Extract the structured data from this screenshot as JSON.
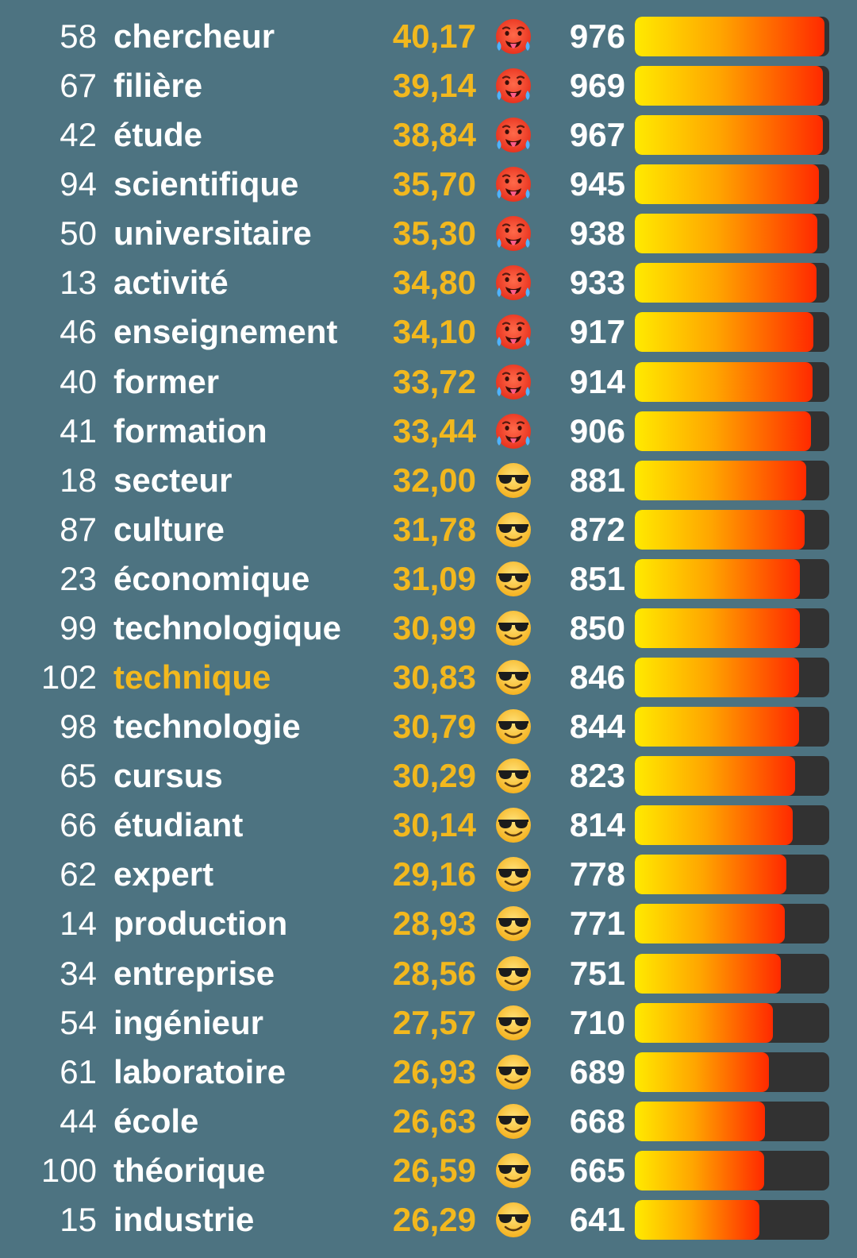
{
  "colors": {
    "background": "#4d7381",
    "highlight": "#f2b81e",
    "bar_track": "#323232",
    "bar_gradient": [
      "#ffea00",
      "#ffa500",
      "#ff2a00"
    ]
  },
  "bar_max_score": 1000,
  "rows": [
    {
      "rank": "58",
      "word": "chercheur",
      "temperature": "40,17",
      "icon": "hot-face-icon",
      "score": "976",
      "progress": 0.976,
      "highlight": false
    },
    {
      "rank": "67",
      "word": "filière",
      "temperature": "39,14",
      "icon": "hot-face-icon",
      "score": "969",
      "progress": 0.969,
      "highlight": false
    },
    {
      "rank": "42",
      "word": "étude",
      "temperature": "38,84",
      "icon": "hot-face-icon",
      "score": "967",
      "progress": 0.967,
      "highlight": false
    },
    {
      "rank": "94",
      "word": "scientifique",
      "temperature": "35,70",
      "icon": "hot-face-icon",
      "score": "945",
      "progress": 0.945,
      "highlight": false
    },
    {
      "rank": "50",
      "word": "universitaire",
      "temperature": "35,30",
      "icon": "hot-face-icon",
      "score": "938",
      "progress": 0.938,
      "highlight": false
    },
    {
      "rank": "13",
      "word": "activité",
      "temperature": "34,80",
      "icon": "hot-face-icon",
      "score": "933",
      "progress": 0.933,
      "highlight": false
    },
    {
      "rank": "46",
      "word": "enseignement",
      "temperature": "34,10",
      "icon": "hot-face-icon",
      "score": "917",
      "progress": 0.917,
      "highlight": false
    },
    {
      "rank": "40",
      "word": "former",
      "temperature": "33,72",
      "icon": "hot-face-icon",
      "score": "914",
      "progress": 0.914,
      "highlight": false
    },
    {
      "rank": "41",
      "word": "formation",
      "temperature": "33,44",
      "icon": "hot-face-icon",
      "score": "906",
      "progress": 0.906,
      "highlight": false
    },
    {
      "rank": "18",
      "word": "secteur",
      "temperature": "32,00",
      "icon": "sunglasses-face-icon",
      "score": "881",
      "progress": 0.881,
      "highlight": false
    },
    {
      "rank": "87",
      "word": "culture",
      "temperature": "31,78",
      "icon": "sunglasses-face-icon",
      "score": "872",
      "progress": 0.872,
      "highlight": false
    },
    {
      "rank": "23",
      "word": "économique",
      "temperature": "31,09",
      "icon": "sunglasses-face-icon",
      "score": "851",
      "progress": 0.851,
      "highlight": false
    },
    {
      "rank": "99",
      "word": "technologique",
      "temperature": "30,99",
      "icon": "sunglasses-face-icon",
      "score": "850",
      "progress": 0.85,
      "highlight": false
    },
    {
      "rank": "102",
      "word": "technique",
      "temperature": "30,83",
      "icon": "sunglasses-face-icon",
      "score": "846",
      "progress": 0.846,
      "highlight": true
    },
    {
      "rank": "98",
      "word": "technologie",
      "temperature": "30,79",
      "icon": "sunglasses-face-icon",
      "score": "844",
      "progress": 0.844,
      "highlight": false
    },
    {
      "rank": "65",
      "word": "cursus",
      "temperature": "30,29",
      "icon": "sunglasses-face-icon",
      "score": "823",
      "progress": 0.823,
      "highlight": false
    },
    {
      "rank": "66",
      "word": "étudiant",
      "temperature": "30,14",
      "icon": "sunglasses-face-icon",
      "score": "814",
      "progress": 0.814,
      "highlight": false
    },
    {
      "rank": "62",
      "word": "expert",
      "temperature": "29,16",
      "icon": "sunglasses-face-icon",
      "score": "778",
      "progress": 0.778,
      "highlight": false
    },
    {
      "rank": "14",
      "word": "production",
      "temperature": "28,93",
      "icon": "sunglasses-face-icon",
      "score": "771",
      "progress": 0.771,
      "highlight": false
    },
    {
      "rank": "34",
      "word": "entreprise",
      "temperature": "28,56",
      "icon": "sunglasses-face-icon",
      "score": "751",
      "progress": 0.751,
      "highlight": false
    },
    {
      "rank": "54",
      "word": "ingénieur",
      "temperature": "27,57",
      "icon": "sunglasses-face-icon",
      "score": "710",
      "progress": 0.71,
      "highlight": false
    },
    {
      "rank": "61",
      "word": "laboratoire",
      "temperature": "26,93",
      "icon": "sunglasses-face-icon",
      "score": "689",
      "progress": 0.689,
      "highlight": false
    },
    {
      "rank": "44",
      "word": "école",
      "temperature": "26,63",
      "icon": "sunglasses-face-icon",
      "score": "668",
      "progress": 0.668,
      "highlight": false
    },
    {
      "rank": "100",
      "word": "théorique",
      "temperature": "26,59",
      "icon": "sunglasses-face-icon",
      "score": "665",
      "progress": 0.665,
      "highlight": false
    },
    {
      "rank": "15",
      "word": "industrie",
      "temperature": "26,29",
      "icon": "sunglasses-face-icon",
      "score": "641",
      "progress": 0.641,
      "highlight": false
    }
  ]
}
